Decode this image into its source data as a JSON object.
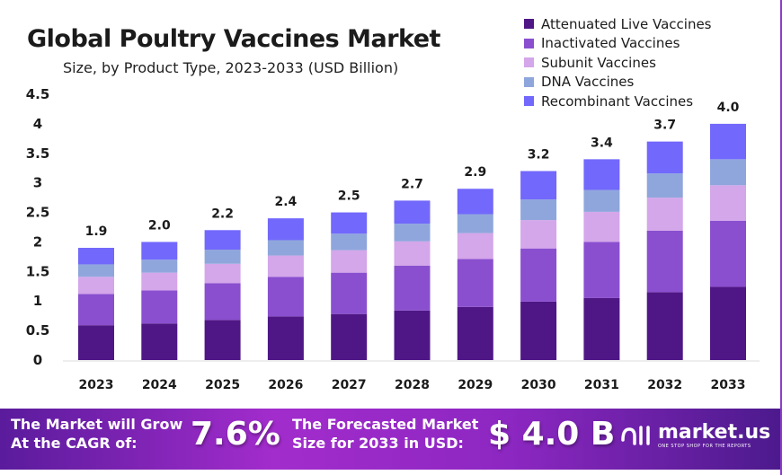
{
  "chart_data": {
    "type": "bar",
    "stacked": true,
    "title": "Global Poultry Vaccines Market",
    "subtitle": "Size, by Product Type, 2023-2033 (USD Billion)",
    "categories": [
      "2023",
      "2024",
      "2025",
      "2026",
      "2027",
      "2028",
      "2029",
      "2030",
      "2031",
      "2032",
      "2033"
    ],
    "totals": [
      "1.9",
      "2.0",
      "2.2",
      "2.4",
      "2.5",
      "2.7",
      "2.9",
      "3.2",
      "3.4",
      "3.7",
      "4.0"
    ],
    "yticks": [
      "0",
      "0.5",
      "1",
      "1.5",
      "2",
      "2.5",
      "3",
      "3.5",
      "4",
      "4.5"
    ],
    "ylim": [
      0,
      4.5
    ],
    "grid": false,
    "legend_position": "top-right",
    "series": [
      {
        "name": "Attenuated Live Vaccines",
        "color": "#4f1786",
        "values": [
          0.59,
          0.62,
          0.68,
          0.74,
          0.78,
          0.84,
          0.9,
          0.99,
          1.05,
          1.15,
          1.24
        ]
      },
      {
        "name": "Inactivated Vaccines",
        "color": "#8a4fcf",
        "values": [
          0.53,
          0.56,
          0.62,
          0.67,
          0.7,
          0.76,
          0.81,
          0.9,
          0.95,
          1.04,
          1.12
        ]
      },
      {
        "name": "Subunit Vaccines",
        "color": "#d4a6ea",
        "values": [
          0.29,
          0.3,
          0.33,
          0.36,
          0.38,
          0.41,
          0.44,
          0.48,
          0.51,
          0.56,
          0.6
        ]
      },
      {
        "name": "DNA Vaccines",
        "color": "#8fa6dc",
        "values": [
          0.21,
          0.22,
          0.24,
          0.26,
          0.28,
          0.3,
          0.32,
          0.35,
          0.37,
          0.41,
          0.44
        ]
      },
      {
        "name": "Recombinant Vaccines",
        "color": "#7268fb",
        "values": [
          0.28,
          0.3,
          0.33,
          0.37,
          0.36,
          0.39,
          0.43,
          0.48,
          0.52,
          0.54,
          0.6
        ]
      }
    ]
  },
  "banner": {
    "cagr_label_1": "The Market will Grow",
    "cagr_label_2": "At the CAGR of:",
    "cagr_value": "7.6%",
    "forecast_label_1": "The Forecasted Market",
    "forecast_label_2": "Size for 2033 in USD:",
    "forecast_value": "$ 4.0 B",
    "logo_name": "market.us",
    "logo_tagline": "ONE STOP SHOP FOR THE REPORTS"
  }
}
